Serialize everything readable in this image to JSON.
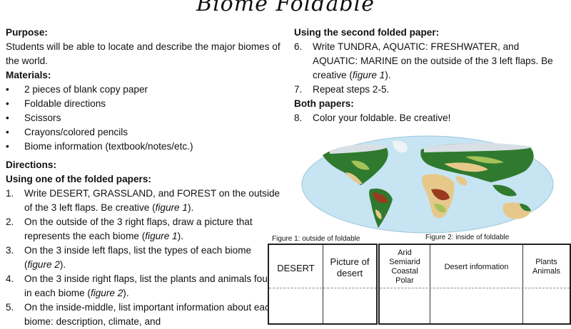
{
  "title": "Biome Foldable",
  "left": {
    "purpose_heading": "Purpose:",
    "purpose_text": "Students will be able to locate and describe the major biomes of the world.",
    "materials_heading": "Materials:",
    "materials": [
      "2 pieces of blank copy paper",
      "Foldable directions",
      "Scissors",
      "Crayons/colored pencils",
      "Biome information (textbook/notes/etc.)"
    ],
    "directions_heading": "Directions:",
    "using_first_heading": "Using one of the folded papers:",
    "steps": [
      {
        "num": "1.",
        "text": "Write DESERT, GRASSLAND, and FOREST on the outside of the 3 left flaps. Be creative (",
        "fig": "figure 1",
        "end": ")."
      },
      {
        "num": "2.",
        "text": "On the outside of the 3 right flaps, draw a picture that represents the each biome (",
        "fig": "figure 1",
        "end": ")."
      },
      {
        "num": "3.",
        "text": "On the 3 inside left flaps, list the types of each biome (",
        "fig": "figure 2",
        "end": ")."
      },
      {
        "num": "4.",
        "text": "On the 3 inside right flaps, list the plants and animals found in each biome (",
        "fig": "figure 2",
        "end": ")."
      },
      {
        "num": "5.",
        "text": "On the inside-middle, list important information about each biome: description, climate, and",
        "fig": "",
        "end": ""
      }
    ]
  },
  "right": {
    "second_heading": "Using the second folded paper:",
    "steps": [
      {
        "num": "6.",
        "text": "Write TUNDRA, AQUATIC: FRESHWATER, and AQUATIC: MARINE on the outside of the 3 left flaps. Be creative (",
        "fig": "figure 1",
        "end": ")."
      },
      {
        "num": "7.",
        "text": "Repeat steps 2-5.",
        "fig": "",
        "end": ""
      }
    ],
    "both_heading": "Both papers:",
    "both_steps": [
      {
        "num": "8.",
        "text": "Color your foldable. Be creative!"
      }
    ]
  },
  "figure1": {
    "caption": "Figure 1: outside of foldable",
    "label_left": "DESERT",
    "label_right": "Picture of desert"
  },
  "figure2": {
    "caption": "Figure 2: inside of foldable",
    "types": [
      "Arid",
      "Semiarid",
      "Coastal",
      "Polar"
    ],
    "middle": "Desert information",
    "right": [
      "Plants",
      "Animals"
    ]
  },
  "colors": {
    "ocean": "#c6e4f2",
    "desert": "#e6c98a",
    "forest": "#2f7a2e",
    "grassland": "#a6c25a",
    "tundra": "#d8e0e6",
    "rainforest": "#9a3b1f"
  }
}
